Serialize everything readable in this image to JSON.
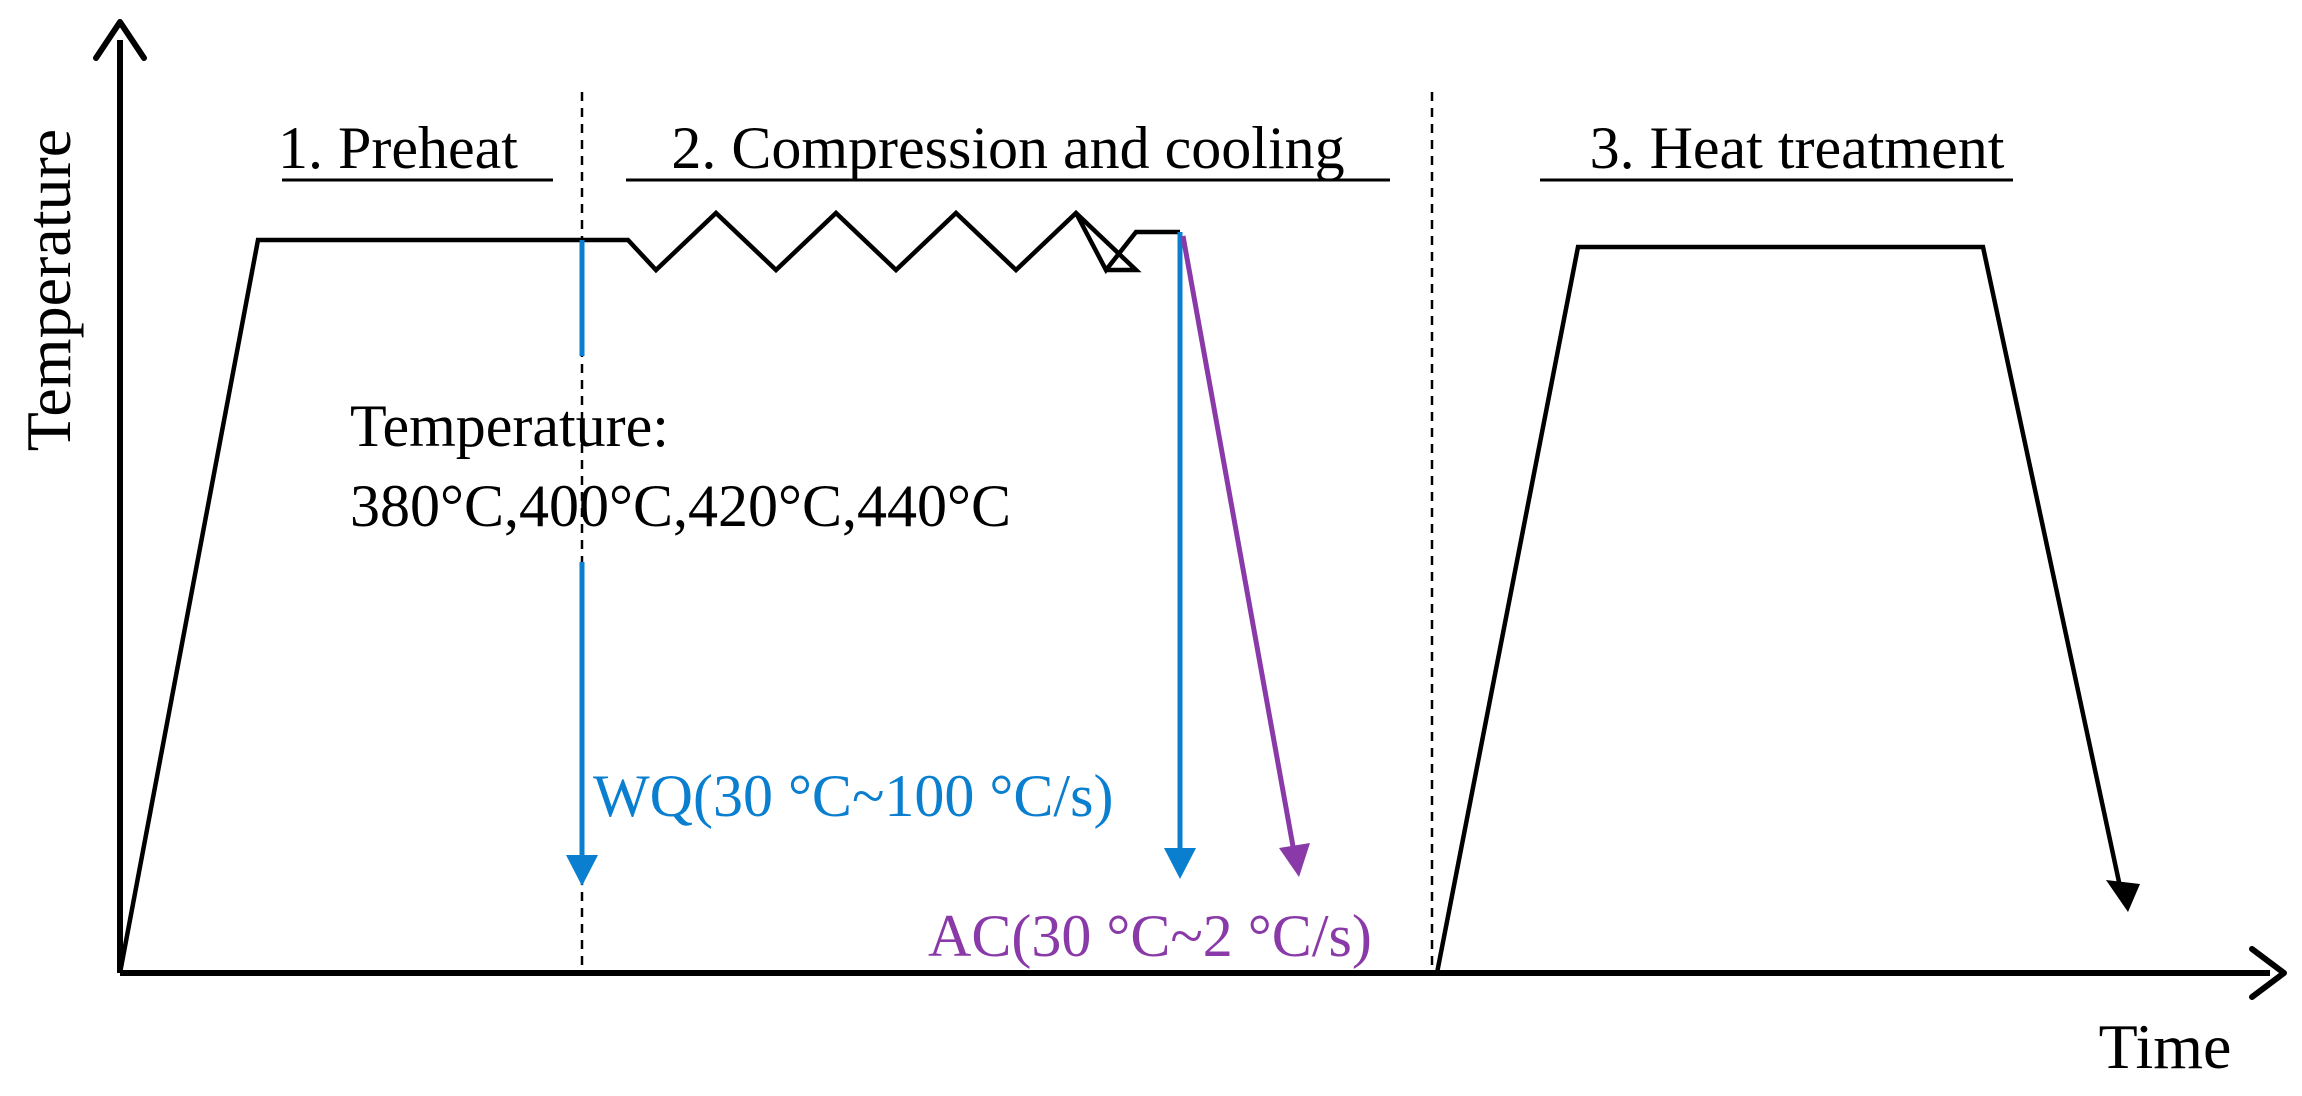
{
  "axes": {
    "y_label": "Temperature",
    "x_label": "Time"
  },
  "stages": [
    {
      "label": "1. Preheat"
    },
    {
      "label": "2. Compression and cooling"
    },
    {
      "label": "3. Heat treatment"
    }
  ],
  "annotations": {
    "temperature_title": "Temperature:",
    "temperature_values": "380°C,400°C,420°C,440°C",
    "water_quench": "WQ(30 °C~100 °C/s)",
    "air_cooling": "AC(30 °C~2 °C/s)"
  },
  "colors": {
    "profile": "#000000",
    "water_quench": "#0a7fd0",
    "air_cooling": "#8a3aa8",
    "divider": "#000000"
  }
}
